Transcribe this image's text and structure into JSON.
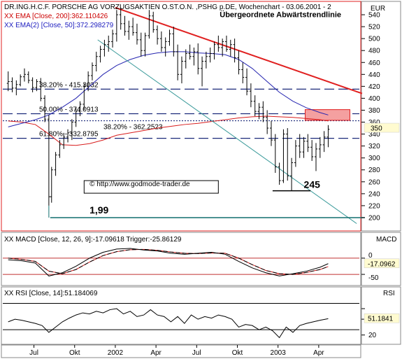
{
  "chart_data": [
    {
      "type": "candlestick",
      "header": "DR.ING.H.C.F. PORSCHE AG VORZUGSAKTIEN O.ST.O.N. ,PSHG p.DE, Wochenchart - 03.06.2001 - 2",
      "indicator_labels": [
        "XX EMA [Close, 200]:362.110426",
        "XX EMA(2) [Close, 50]:372.298279"
      ],
      "unit_label": "EUR",
      "ylim": [
        180,
        560
      ],
      "y_ticks": [
        200,
        220,
        240,
        260,
        280,
        300,
        320,
        340,
        360,
        380,
        400,
        420,
        440,
        460,
        480,
        500,
        520,
        540
      ],
      "current_value_label": "350",
      "x_tick_labels": [
        "Jul",
        "Okt",
        "2002",
        "Apr",
        "Jul",
        "Okt",
        "2003",
        "Apr"
      ],
      "x_ticks": [
        1.9,
        4.9,
        7.9,
        10.9,
        13.9,
        16.9,
        19.9,
        22.9
      ],
      "xlim": [
        -0.5,
        26
      ],
      "fib_levels": [
        {
          "label": "38.20% - 415.3032",
          "value": 415.3
        },
        {
          "label": "50.00% - 374.0913",
          "value": 374.1
        },
        {
          "label": "38.20% - 362.2523",
          "value": 362.3
        },
        {
          "label": "61.80% - 332.8795",
          "value": 332.9
        }
      ],
      "annotations": [
        {
          "text": "Übergeordnete Abwärtstrendlinie",
          "x": 15.6,
          "y": 536
        },
        {
          "text": "© http://www.godmode-trader.de",
          "x": 6.0,
          "y": 253
        },
        {
          "text": "1,99",
          "x": 6.0,
          "y": 207
        },
        {
          "text": "245",
          "x": 21.8,
          "y": 250
        }
      ],
      "trendlines": [
        {
          "name": "downtrend",
          "color": "#e02020",
          "points": [
            [
              7.9,
              552
            ],
            [
              26.1,
              408
            ]
          ]
        },
        {
          "name": "long-term-downtrend",
          "color": "#3a9a9a",
          "points": [
            [
              6.6,
              498
            ],
            [
              25.7,
              190
            ]
          ]
        }
      ],
      "support_lines": [
        {
          "value": 200,
          "x_range": [
            3.1,
            26.3
          ],
          "color": "#106e6e"
        },
        {
          "value": 245,
          "x_range": [
            19.5,
            22.3
          ],
          "color": "#000000"
        }
      ],
      "resistance_box": {
        "x_range": [
          21.9,
          25.2
        ],
        "y_range": [
          363,
          381
        ],
        "color": "#f4a0a0"
      },
      "candles": [
        [
          0,
          425,
          445,
          412,
          428
        ],
        [
          0.3,
          428,
          435,
          410,
          417
        ],
        [
          0.6,
          417,
          430,
          405,
          423
        ],
        [
          0.9,
          423,
          440,
          420,
          436
        ],
        [
          1.2,
          436,
          450,
          428,
          440
        ],
        [
          1.5,
          440,
          445,
          425,
          430
        ],
        [
          1.8,
          430,
          435,
          410,
          418
        ],
        [
          2.1,
          418,
          432,
          412,
          428
        ],
        [
          2.4,
          428,
          434,
          395,
          400
        ],
        [
          2.7,
          400,
          405,
          360,
          365
        ],
        [
          3.0,
          365,
          372,
          220,
          235
        ],
        [
          3.2,
          235,
          285,
          225,
          280
        ],
        [
          3.5,
          280,
          310,
          270,
          305
        ],
        [
          3.8,
          305,
          330,
          300,
          322
        ],
        [
          4.1,
          322,
          342,
          315,
          335
        ],
        [
          4.4,
          335,
          348,
          326,
          342
        ],
        [
          4.7,
          342,
          365,
          330,
          360
        ],
        [
          5.0,
          360,
          385,
          352,
          378
        ],
        [
          5.3,
          378,
          395,
          370,
          390
        ],
        [
          5.6,
          390,
          425,
          380,
          420
        ],
        [
          5.9,
          420,
          445,
          412,
          438
        ],
        [
          6.2,
          438,
          460,
          430,
          455
        ],
        [
          6.5,
          455,
          478,
          445,
          470
        ],
        [
          6.8,
          470,
          488,
          460,
          482
        ],
        [
          7.1,
          482,
          498,
          470,
          490
        ],
        [
          7.4,
          490,
          505,
          478,
          495
        ],
        [
          7.7,
          495,
          515,
          485,
          508
        ],
        [
          8.0,
          508,
          548,
          495,
          540
        ],
        [
          8.3,
          540,
          552,
          515,
          525
        ],
        [
          8.6,
          525,
          538,
          505,
          512
        ],
        [
          8.9,
          512,
          530,
          498,
          520
        ],
        [
          9.2,
          520,
          535,
          505,
          510
        ],
        [
          9.5,
          510,
          525,
          490,
          498
        ],
        [
          9.8,
          498,
          510,
          470,
          480
        ],
        [
          10.1,
          480,
          510,
          470,
          505
        ],
        [
          10.4,
          505,
          548,
          500,
          538
        ],
        [
          10.7,
          538,
          545,
          510,
          515
        ],
        [
          11.0,
          515,
          522,
          490,
          500
        ],
        [
          11.3,
          500,
          512,
          478,
          485
        ],
        [
          11.6,
          485,
          502,
          470,
          495
        ],
        [
          11.9,
          495,
          515,
          488,
          508
        ],
        [
          12.2,
          508,
          520,
          470,
          478
        ],
        [
          12.5,
          478,
          490,
          430,
          440
        ],
        [
          12.8,
          440,
          470,
          425,
          462
        ],
        [
          13.1,
          462,
          482,
          450,
          475
        ],
        [
          13.4,
          475,
          490,
          465,
          470
        ],
        [
          13.7,
          470,
          485,
          455,
          478
        ],
        [
          14.0,
          478,
          492,
          440,
          450
        ],
        [
          14.3,
          450,
          470,
          420,
          462
        ],
        [
          14.6,
          462,
          478,
          450,
          470
        ],
        [
          14.9,
          470,
          485,
          460,
          475
        ],
        [
          15.2,
          475,
          495,
          465,
          490
        ],
        [
          15.5,
          490,
          505,
          478,
          485
        ],
        [
          15.8,
          485,
          500,
          470,
          495
        ],
        [
          16.1,
          495,
          505,
          478,
          482
        ],
        [
          16.4,
          482,
          498,
          470,
          490
        ],
        [
          16.7,
          490,
          500,
          460,
          468
        ],
        [
          17.0,
          468,
          480,
          440,
          448
        ],
        [
          17.3,
          448,
          460,
          425,
          435
        ],
        [
          17.6,
          435,
          450,
          405,
          412
        ],
        [
          17.9,
          412,
          425,
          385,
          395
        ],
        [
          18.2,
          395,
          405,
          370,
          378
        ],
        [
          18.5,
          378,
          392,
          365,
          385
        ],
        [
          18.8,
          385,
          395,
          360,
          368
        ],
        [
          19.1,
          368,
          380,
          340,
          350
        ],
        [
          19.4,
          350,
          362,
          320,
          330
        ],
        [
          19.7,
          330,
          340,
          275,
          285
        ],
        [
          20.0,
          285,
          292,
          255,
          262
        ],
        [
          20.3,
          262,
          348,
          258,
          340
        ],
        [
          20.6,
          340,
          350,
          262,
          270
        ],
        [
          20.9,
          270,
          300,
          245,
          292
        ],
        [
          21.2,
          292,
          330,
          285,
          320
        ],
        [
          21.5,
          320,
          340,
          300,
          310
        ],
        [
          21.8,
          310,
          335,
          300,
          328
        ],
        [
          22.1,
          328,
          340,
          310,
          318
        ],
        [
          22.4,
          318,
          330,
          295,
          302
        ],
        [
          22.7,
          302,
          325,
          278,
          315
        ],
        [
          23.0,
          315,
          335,
          300,
          322
        ],
        [
          23.3,
          322,
          345,
          310,
          335
        ],
        [
          23.6,
          335,
          355,
          318,
          348
        ]
      ],
      "ema200": [
        [
          0,
          362
        ],
        [
          1,
          360
        ],
        [
          2,
          356
        ],
        [
          3,
          340
        ],
        [
          4,
          322
        ],
        [
          5,
          321
        ],
        [
          6,
          324
        ],
        [
          7,
          330
        ],
        [
          8,
          338
        ],
        [
          9,
          342
        ],
        [
          10,
          346
        ],
        [
          11,
          350
        ],
        [
          12,
          353
        ],
        [
          13,
          356
        ],
        [
          14,
          358
        ],
        [
          15,
          361
        ],
        [
          16,
          364
        ],
        [
          17,
          367
        ],
        [
          18,
          369
        ],
        [
          19,
          370
        ],
        [
          20,
          369
        ],
        [
          21,
          368
        ],
        [
          22,
          366
        ],
        [
          23,
          364
        ],
        [
          23.6,
          362
        ]
      ],
      "ema50": [
        [
          0,
          352
        ],
        [
          1,
          358
        ],
        [
          2,
          364
        ],
        [
          3,
          372
        ],
        [
          4,
          385
        ],
        [
          5,
          400
        ],
        [
          6,
          420
        ],
        [
          7,
          440
        ],
        [
          8,
          455
        ],
        [
          9,
          465
        ],
        [
          10,
          472
        ],
        [
          11,
          476
        ],
        [
          12,
          478
        ],
        [
          13,
          478
        ],
        [
          14,
          476
        ],
        [
          15,
          475
        ],
        [
          16,
          473
        ],
        [
          17,
          465
        ],
        [
          18,
          450
        ],
        [
          19,
          430
        ],
        [
          20,
          410
        ],
        [
          21,
          395
        ],
        [
          22,
          384
        ],
        [
          23,
          376
        ],
        [
          23.6,
          372
        ]
      ]
    },
    {
      "type": "line",
      "title": "MACD",
      "label": "XX MACD [Close, 12, 26, 9]:-17.09618 Trigger:-25.86129",
      "current_value_label": "-17.0962",
      "ylim": [
        -80,
        45
      ],
      "y_ticks": [
        0,
        -50
      ],
      "y_tick_labels": [
        "0",
        "-50"
      ],
      "reference_lines": [
        0,
        -50
      ],
      "macd": [
        [
          0,
          -5
        ],
        [
          1,
          -8
        ],
        [
          2,
          -15
        ],
        [
          3,
          -55
        ],
        [
          4,
          -45
        ],
        [
          5,
          -25
        ],
        [
          6,
          0
        ],
        [
          7,
          18
        ],
        [
          8,
          28
        ],
        [
          9,
          30
        ],
        [
          10,
          25
        ],
        [
          11,
          22
        ],
        [
          12,
          15
        ],
        [
          13,
          12
        ],
        [
          14,
          15
        ],
        [
          15,
          18
        ],
        [
          16,
          12
        ],
        [
          17,
          -10
        ],
        [
          18,
          -30
        ],
        [
          19,
          -45
        ],
        [
          20,
          -55
        ],
        [
          21,
          -48
        ],
        [
          22,
          -40
        ],
        [
          23,
          -28
        ],
        [
          23.6,
          -17
        ]
      ],
      "trigger": [
        [
          0,
          0
        ],
        [
          1,
          -4
        ],
        [
          2,
          -10
        ],
        [
          3,
          -40
        ],
        [
          4,
          -48
        ],
        [
          5,
          -35
        ],
        [
          6,
          -12
        ],
        [
          7,
          8
        ],
        [
          8,
          20
        ],
        [
          9,
          26
        ],
        [
          10,
          27
        ],
        [
          11,
          24
        ],
        [
          12,
          19
        ],
        [
          13,
          15
        ],
        [
          14,
          14
        ],
        [
          15,
          16
        ],
        [
          16,
          15
        ],
        [
          17,
          0
        ],
        [
          18,
          -20
        ],
        [
          19,
          -38
        ],
        [
          20,
          -48
        ],
        [
          21,
          -50
        ],
        [
          22,
          -44
        ],
        [
          23,
          -35
        ],
        [
          23.6,
          -26
        ]
      ]
    },
    {
      "type": "line",
      "title": "RSI",
      "label": "XX RSI [Close, 14]:51.184069",
      "current_value_label": "51.1841",
      "ylim": [
        5,
        90
      ],
      "y_ticks": [
        70,
        50,
        20
      ],
      "y_tick_labels": [
        "",
        "",
        "20"
      ],
      "reference_lines": [
        80,
        30
      ],
      "rsi": [
        [
          0,
          45
        ],
        [
          0.5,
          50
        ],
        [
          1,
          48
        ],
        [
          1.5,
          45
        ],
        [
          2,
          42
        ],
        [
          2.5,
          38
        ],
        [
          3,
          25
        ],
        [
          3.5,
          35
        ],
        [
          4,
          45
        ],
        [
          4.5,
          52
        ],
        [
          5,
          58
        ],
        [
          5.5,
          62
        ],
        [
          6,
          60
        ],
        [
          6.5,
          65
        ],
        [
          7,
          62
        ],
        [
          7.5,
          68
        ],
        [
          8,
          70
        ],
        [
          8.5,
          60
        ],
        [
          9,
          65
        ],
        [
          9.5,
          55
        ],
        [
          10,
          58
        ],
        [
          10.5,
          68
        ],
        [
          11,
          58
        ],
        [
          11.5,
          55
        ],
        [
          12,
          45
        ],
        [
          12.5,
          55
        ],
        [
          13,
          42
        ],
        [
          13.5,
          58
        ],
        [
          14,
          50
        ],
        [
          14.5,
          55
        ],
        [
          15,
          52
        ],
        [
          15.5,
          58
        ],
        [
          16,
          55
        ],
        [
          16.5,
          50
        ],
        [
          17,
          35
        ],
        [
          17.5,
          40
        ],
        [
          18,
          38
        ],
        [
          18.5,
          30
        ],
        [
          19,
          35
        ],
        [
          19.5,
          28
        ],
        [
          20,
          15
        ],
        [
          20.5,
          35
        ],
        [
          21,
          25
        ],
        [
          21.5,
          38
        ],
        [
          22,
          42
        ],
        [
          22.5,
          45
        ],
        [
          23,
          48
        ],
        [
          23.6,
          51
        ]
      ]
    }
  ]
}
